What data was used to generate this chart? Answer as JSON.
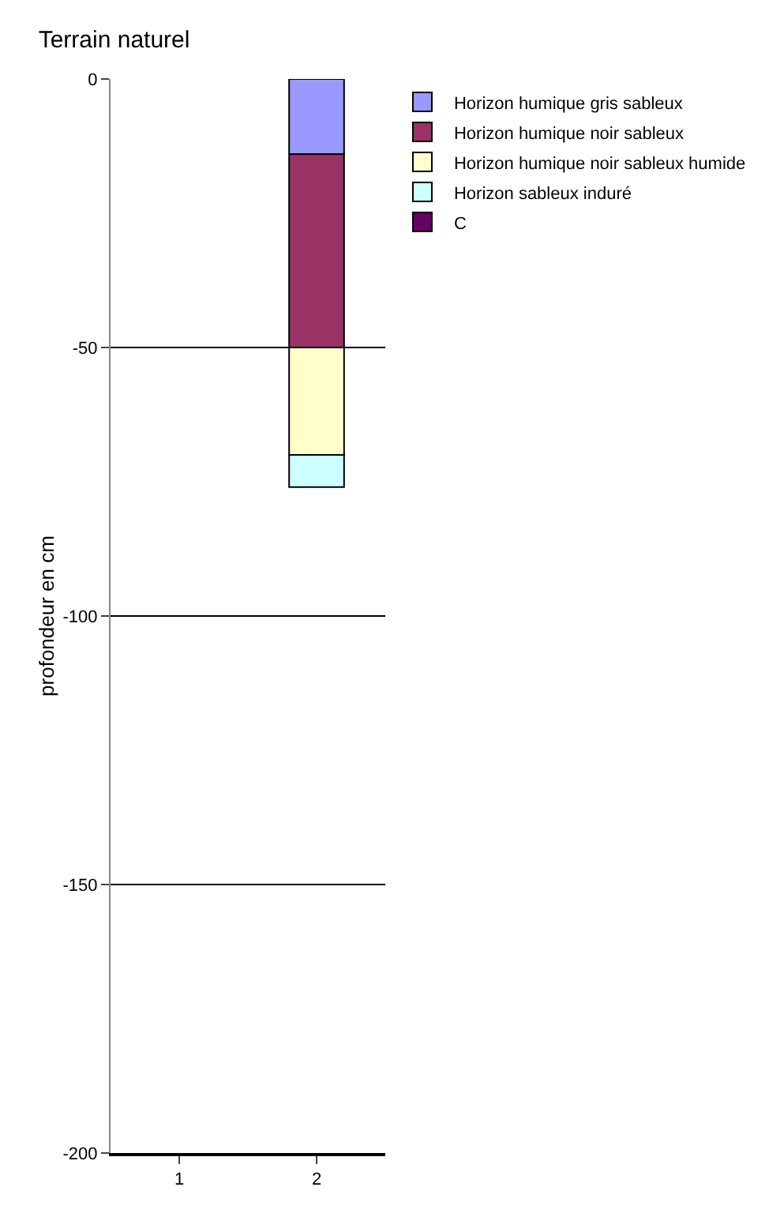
{
  "chart_data": {
    "type": "bar",
    "title": "Terrain naturel",
    "ylabel": "profondeur en cm",
    "categories": [
      "1",
      "2"
    ],
    "stacked": true,
    "series": [
      {
        "name": "Horizon humique gris sableux",
        "color": "#9999ff",
        "values": [
          null,
          -14
        ]
      },
      {
        "name": "Horizon humique noir sableux",
        "color": "#993366",
        "values": [
          null,
          -36
        ]
      },
      {
        "name": "Horizon humique noir sableux humide",
        "color": "#ffffcc",
        "values": [
          null,
          -20
        ]
      },
      {
        "name": "Horizon sableux induré",
        "color": "#ccffff",
        "values": [
          null,
          -6
        ]
      },
      {
        "name": "C",
        "color": "#660066",
        "values": [
          null,
          null
        ]
      }
    ],
    "ylim": [
      -200,
      0
    ],
    "yticks": [
      0,
      -50,
      -100,
      -150,
      -200
    ],
    "grid": "y",
    "legend": "right"
  }
}
